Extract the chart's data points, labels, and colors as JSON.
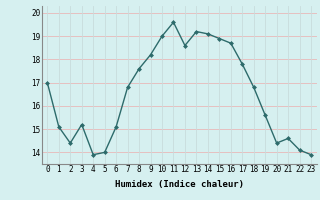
{
  "x": [
    0,
    1,
    2,
    3,
    4,
    5,
    6,
    7,
    8,
    9,
    10,
    11,
    12,
    13,
    14,
    15,
    16,
    17,
    18,
    19,
    20,
    21,
    22,
    23
  ],
  "y": [
    17.0,
    15.1,
    14.4,
    15.2,
    13.9,
    14.0,
    15.1,
    16.8,
    17.6,
    18.2,
    19.0,
    19.6,
    18.6,
    19.2,
    19.1,
    18.9,
    18.7,
    17.8,
    16.8,
    15.6,
    14.4,
    14.6,
    14.1,
    13.9
  ],
  "line_color": "#2d6b6b",
  "marker": "D",
  "marker_size": 2,
  "bg_color": "#d6f0f0",
  "grid_color": "#c8dcdc",
  "grid_red": "#e8b8b8",
  "xlabel": "Humidex (Indice chaleur)",
  "ylim": [
    13.5,
    20.3
  ],
  "xlim": [
    -0.5,
    23.5
  ],
  "yticks": [
    14,
    15,
    16,
    17,
    18,
    19,
    20
  ],
  "xtick_labels": [
    "0",
    "1",
    "2",
    "3",
    "4",
    "5",
    "6",
    "7",
    "8",
    "9",
    "10",
    "11",
    "12",
    "13",
    "14",
    "15",
    "16",
    "17",
    "18",
    "19",
    "20",
    "21",
    "22",
    "23"
  ],
  "xlabel_fontsize": 6.5,
  "tick_fontsize": 5.5,
  "line_width": 1.0
}
